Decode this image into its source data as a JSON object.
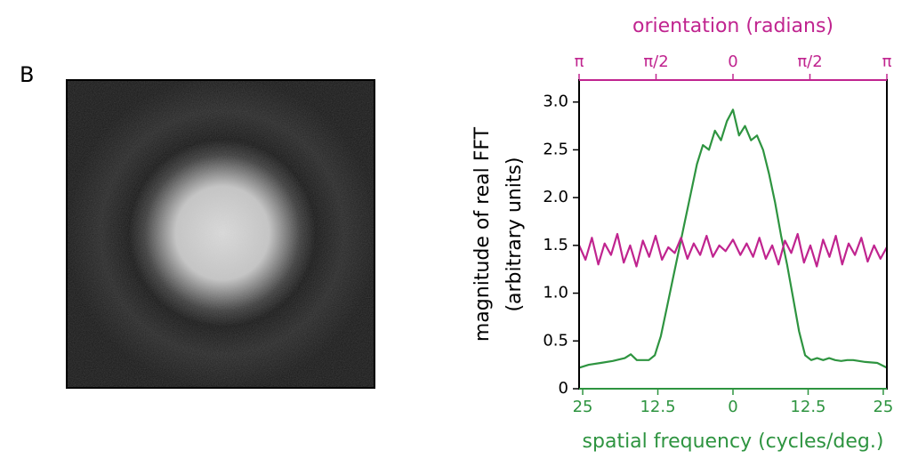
{
  "panel_label": "B",
  "chart_data": {
    "type": "line",
    "xlabel": "spatial frequency (cycles/deg.)",
    "x2label": "orientation (radians)",
    "ylabel": [
      "magnitude of real FFT",
      "(arbitrary units)"
    ],
    "xlim": [
      -25.6,
      25.6
    ],
    "xticks": [
      {
        "value": -25,
        "label": "25"
      },
      {
        "value": -12.5,
        "label": "12.5"
      },
      0,
      12.5,
      25
    ],
    "x2lim": [
      -3.1416,
      3.1416
    ],
    "x2ticks": [
      {
        "value": -3.1416,
        "label": "π"
      },
      {
        "value": -1.5708,
        "label": "π/2"
      },
      0,
      {
        "value": 1.5708,
        "label": "π/2"
      },
      {
        "value": 3.1416,
        "label": "π"
      }
    ],
    "ylim": [
      0,
      3.23
    ],
    "yticks": [
      0,
      0.5,
      {
        "value": 1.0,
        "label": "1.0"
      },
      1.5,
      {
        "value": 2.0,
        "label": "2.0"
      },
      2.5,
      {
        "value": 3.0,
        "label": "3.0"
      }
    ],
    "xcolor": "#2e9440",
    "x2color": "#c0248f",
    "series": [
      {
        "color": "#2e9440",
        "x": [
          -25.6,
          -24,
          -22,
          -20,
          -18,
          -17,
          -16,
          -15,
          -14,
          -13,
          -12,
          -11,
          -10,
          -9,
          -8,
          -7,
          -6,
          -5,
          -4,
          -3,
          -2,
          -1,
          0,
          1,
          2,
          3,
          4,
          5,
          6,
          7,
          8,
          9,
          10,
          11,
          12,
          13,
          14,
          15,
          16,
          17,
          18,
          19,
          20,
          22,
          24,
          25.6
        ],
        "values": [
          0.22,
          0.25,
          0.27,
          0.29,
          0.32,
          0.36,
          0.3,
          0.3,
          0.3,
          0.35,
          0.55,
          0.85,
          1.15,
          1.45,
          1.75,
          2.05,
          2.35,
          2.55,
          2.5,
          2.7,
          2.6,
          2.8,
          2.92,
          2.65,
          2.75,
          2.6,
          2.65,
          2.5,
          2.25,
          1.95,
          1.6,
          1.3,
          0.95,
          0.6,
          0.35,
          0.3,
          0.32,
          0.3,
          0.32,
          0.3,
          0.29,
          0.3,
          0.3,
          0.28,
          0.27,
          0.22
        ]
      },
      {
        "color": "#c0248f",
        "axis": "x2",
        "x": [
          -3.14,
          -3.01,
          -2.88,
          -2.75,
          -2.62,
          -2.49,
          -2.36,
          -2.23,
          -2.1,
          -1.97,
          -1.84,
          -1.71,
          -1.58,
          -1.45,
          -1.32,
          -1.19,
          -1.06,
          -0.93,
          -0.8,
          -0.67,
          -0.54,
          -0.41,
          -0.28,
          -0.15,
          0,
          0.15,
          0.28,
          0.41,
          0.54,
          0.67,
          0.8,
          0.93,
          1.06,
          1.19,
          1.32,
          1.45,
          1.58,
          1.71,
          1.84,
          1.97,
          2.1,
          2.23,
          2.36,
          2.49,
          2.62,
          2.75,
          2.88,
          3.01,
          3.14
        ],
        "values": [
          1.5,
          1.35,
          1.58,
          1.3,
          1.52,
          1.4,
          1.62,
          1.32,
          1.5,
          1.28,
          1.55,
          1.38,
          1.6,
          1.35,
          1.48,
          1.42,
          1.58,
          1.36,
          1.52,
          1.4,
          1.6,
          1.38,
          1.5,
          1.44,
          1.56,
          1.4,
          1.52,
          1.38,
          1.58,
          1.36,
          1.5,
          1.3,
          1.55,
          1.42,
          1.62,
          1.32,
          1.5,
          1.28,
          1.56,
          1.38,
          1.6,
          1.3,
          1.52,
          1.4,
          1.58,
          1.33,
          1.5,
          1.36,
          1.48
        ]
      }
    ]
  }
}
